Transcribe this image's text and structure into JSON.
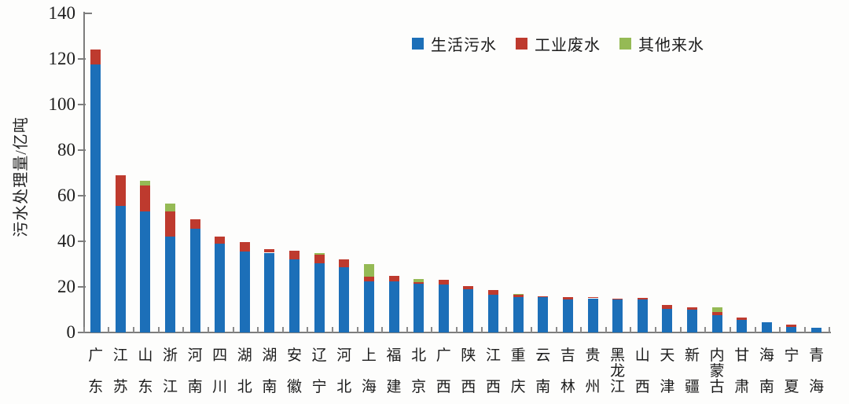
{
  "chart_data": {
    "type": "bar",
    "stacked": true,
    "title": "",
    "xlabel": "",
    "ylabel": "污水处理量/亿吨",
    "unit": "亿吨",
    "ylim": [
      0,
      140
    ],
    "yticks": [
      0,
      20,
      40,
      60,
      80,
      100,
      120,
      140
    ],
    "grid": false,
    "legend_position": "top",
    "categories": [
      "广东",
      "江苏",
      "山东",
      "浙江",
      "河南",
      "四川",
      "湖北",
      "湖南",
      "安徽",
      "辽宁",
      "河北",
      "上海",
      "福建",
      "北京",
      "广西",
      "陕西",
      "江西",
      "重庆",
      "云南",
      "吉林",
      "贵州",
      "黑龙江",
      "山西",
      "天津",
      "新疆",
      "内蒙古",
      "甘肃",
      "海南",
      "宁夏",
      "青海"
    ],
    "series": [
      {
        "name": "生活污水",
        "color": "#1C6FB8",
        "values": [
          117.5,
          55.5,
          53,
          42,
          45.5,
          39,
          35.5,
          35,
          32,
          30.5,
          28.5,
          22.5,
          22.5,
          21.5,
          21,
          19,
          16.5,
          15.5,
          15.5,
          14.5,
          15,
          14.5,
          14.5,
          10.5,
          10,
          7.5,
          5.5,
          4.5,
          2.5,
          2
        ]
      },
      {
        "name": "工业废水",
        "color": "#BE3A2E",
        "values": [
          6.5,
          13.5,
          11.5,
          11,
          4,
          3,
          4,
          1.5,
          4,
          3.5,
          3.5,
          2,
          2.5,
          0.7,
          2,
          1.5,
          2,
          1,
          0.5,
          1,
          0.5,
          0.5,
          0.7,
          1.5,
          1,
          1.5,
          1,
          0,
          1,
          0
        ]
      },
      {
        "name": "其他来水",
        "color": "#95BA55",
        "values": [
          0,
          0,
          2,
          3.5,
          0,
          0,
          0,
          0,
          0,
          1,
          0,
          5.5,
          0,
          1.3,
          0,
          0,
          0,
          0.5,
          0,
          0,
          0,
          0,
          0,
          0,
          0,
          2,
          0,
          0,
          0,
          0
        ]
      }
    ],
    "axis_color": "#7d7d7d"
  }
}
